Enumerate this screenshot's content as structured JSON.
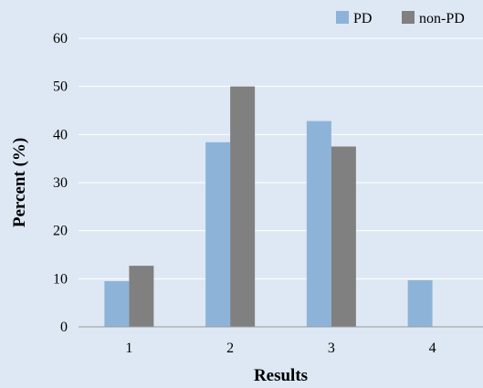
{
  "chart_data": {
    "type": "bar",
    "categories": [
      "1",
      "2",
      "3",
      "4"
    ],
    "series": [
      {
        "name": "PD",
        "values": [
          9.5,
          38.4,
          42.8,
          9.7
        ],
        "color": "#8db4d8"
      },
      {
        "name": "non-PD",
        "values": [
          12.7,
          50.0,
          37.5,
          0
        ],
        "color": "#808080"
      }
    ],
    "xlabel": "Results",
    "ylabel": "Percent (%)",
    "ylim": [
      0,
      60
    ],
    "yticks": [
      0,
      10,
      20,
      30,
      40,
      50,
      60
    ],
    "grid": true,
    "legend_position": "top-right"
  }
}
